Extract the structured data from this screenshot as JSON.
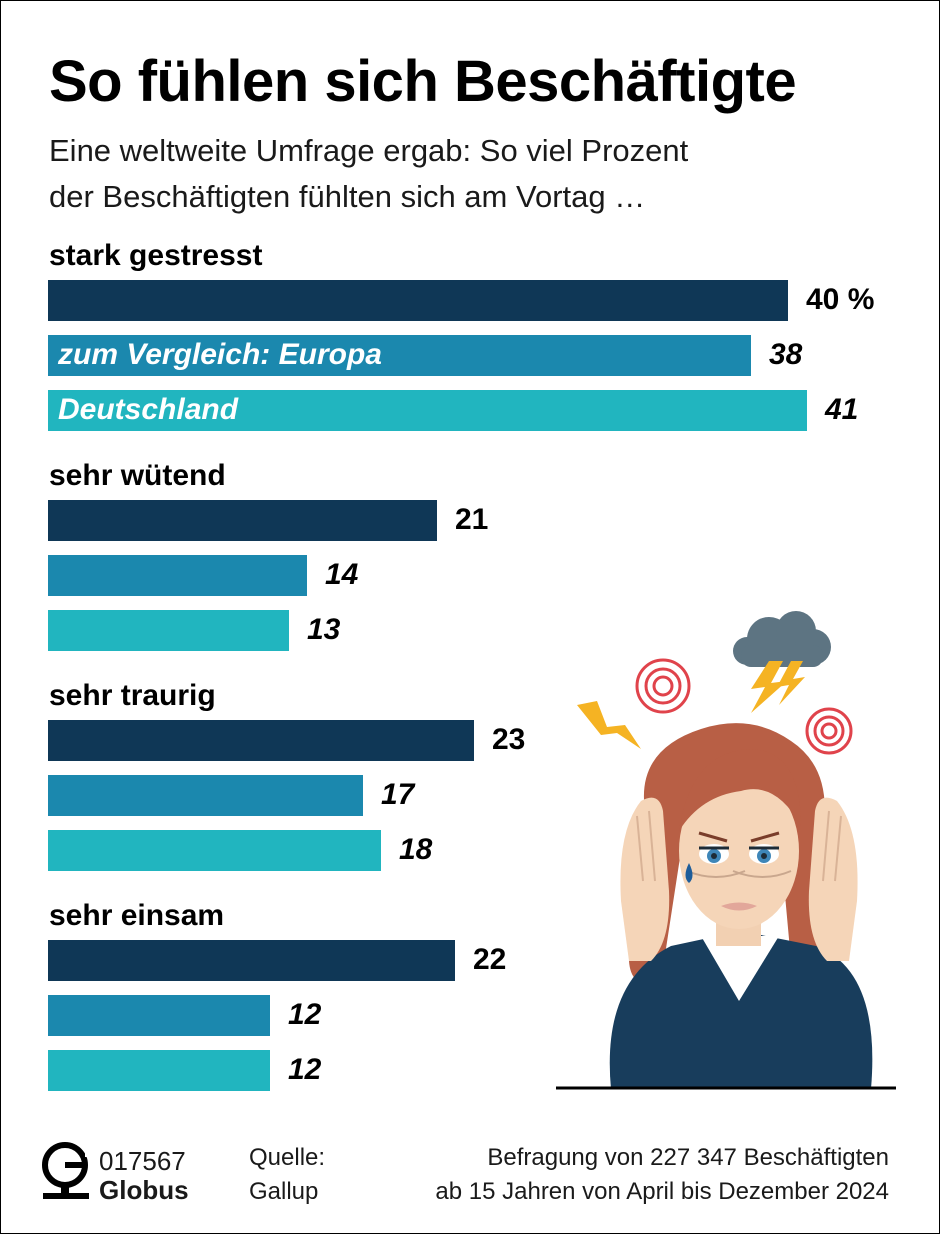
{
  "title": "So fühlen sich Beschäftigte",
  "subtitle": [
    "Eine weltweite Umfrage ergab: So viel Prozent",
    "der Beschäftigten fühlten sich am Vortag …"
  ],
  "colors": {
    "weltweit": "#0f3756",
    "europa": "#1b88ae",
    "deutschland": "#21b5bf"
  },
  "chart_data": {
    "type": "bar",
    "orientation": "horizontal",
    "unit": "%",
    "categories": [
      "stark gestresst",
      "sehr wütend",
      "sehr traurig",
      "sehr einsam"
    ],
    "series": [
      {
        "values": [
          40,
          21,
          23,
          22
        ],
        "value_labels": [
          "40 %",
          "21",
          "23",
          "22"
        ]
      },
      {
        "name": "zum Vergleich: Europa",
        "values": [
          38,
          14,
          17,
          12
        ],
        "value_labels": [
          "38",
          "14",
          "17",
          "12"
        ]
      },
      {
        "name": "Deutschland",
        "values": [
          41,
          13,
          18,
          12
        ],
        "value_labels": [
          "41",
          "13",
          "18",
          "12"
        ]
      }
    ]
  },
  "footer": {
    "code": "017567",
    "brand": "Globus",
    "source_label": "Quelle:",
    "source_name": "Gallup",
    "note": [
      "Befragung von 227 347 Beschäftigten",
      "ab 15 Jahren von April bis Dezember 2024"
    ]
  },
  "illustration": {
    "icon": "stressed-woman-illustration"
  },
  "logo": {
    "icon": "globus-logo-icon"
  }
}
